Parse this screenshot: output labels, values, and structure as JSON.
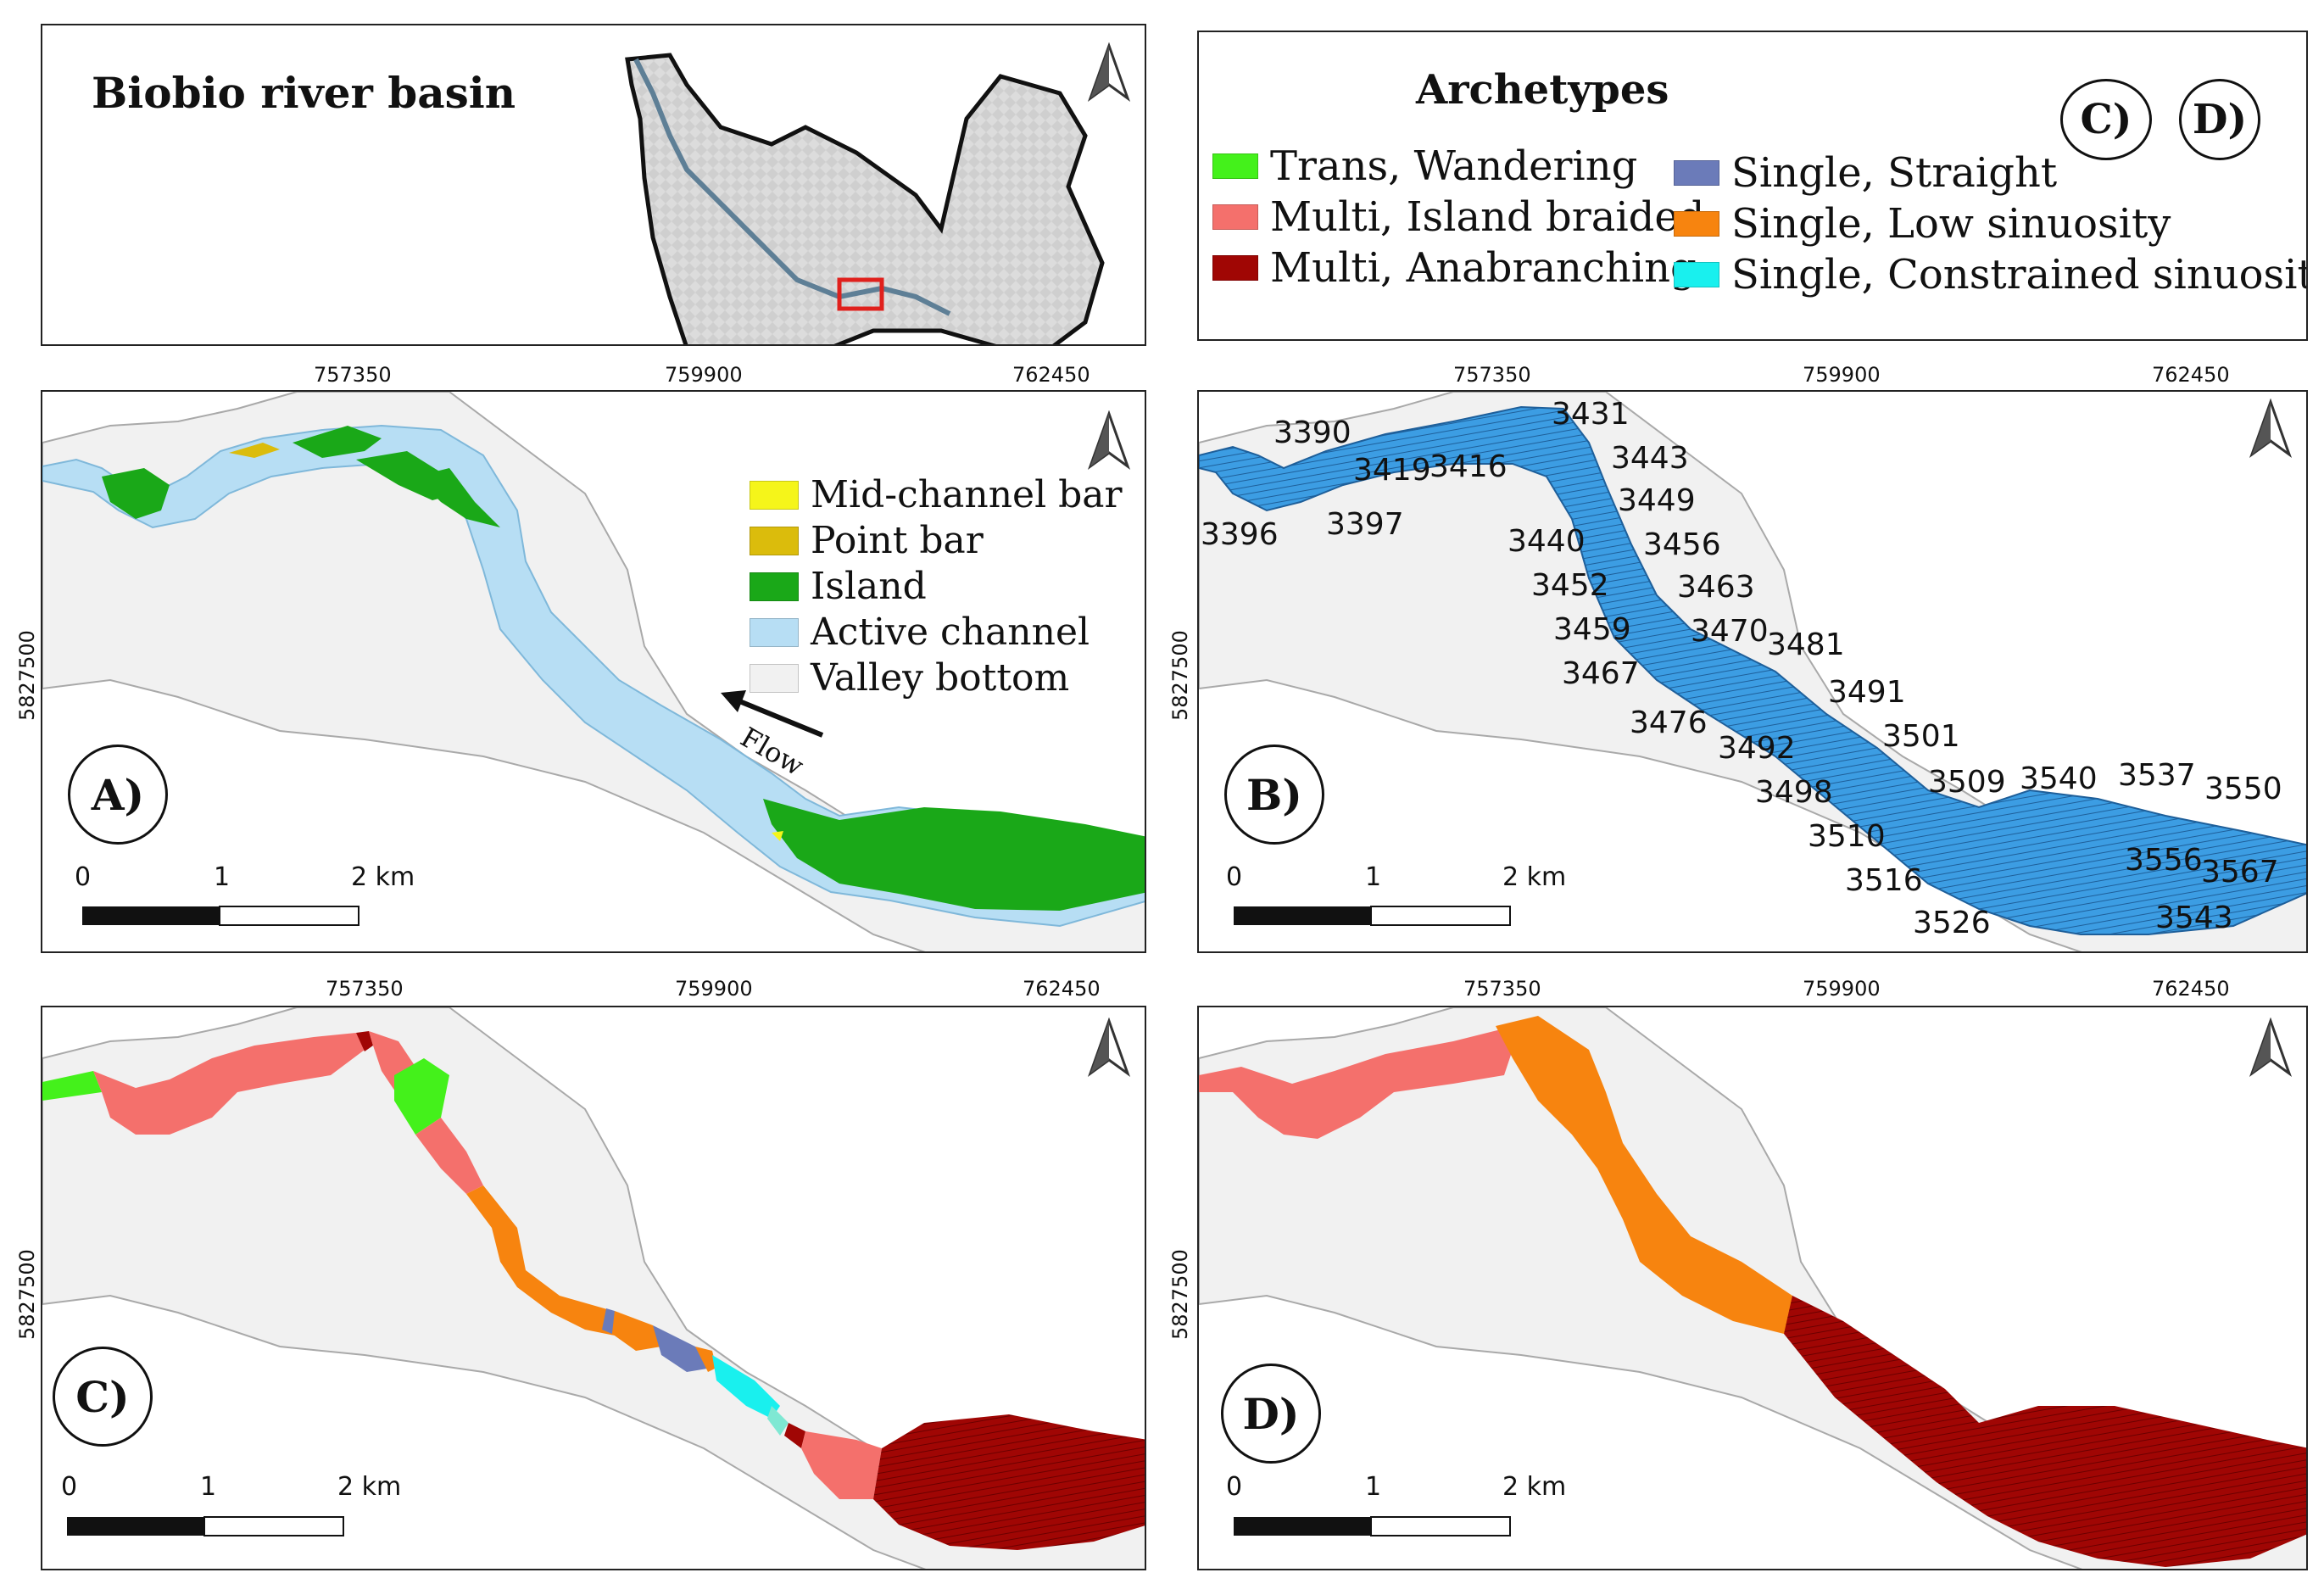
{
  "overview": {
    "title": "Biobio river basin"
  },
  "archetypes_legend": {
    "title": "Archetypes",
    "panel_refs": [
      "C)",
      "D)"
    ],
    "items": [
      {
        "label": "Trans, Wandering",
        "color": "#44f11b"
      },
      {
        "label": "Multi, Island braided",
        "color": "#f4706c"
      },
      {
        "label": "Multi, Anabranching",
        "color": "#a00604"
      },
      {
        "label": "Single, Straight",
        "color": "#6b7bb9"
      },
      {
        "label": "Single, Low sinuosity",
        "color": "#f7840f"
      },
      {
        "label": "Single, Constrained sinuosity",
        "color": "#19f0ee"
      }
    ]
  },
  "coords": {
    "x_ticks": [
      "757350",
      "759900",
      "762450"
    ],
    "y_tick": "5827500"
  },
  "scalebar": {
    "labels": [
      "0",
      "1",
      "2 km"
    ]
  },
  "panel_a": {
    "label": "A)",
    "flow_label": "Flow",
    "legend": [
      {
        "label": "Mid-channel bar",
        "color": "#f5f51a"
      },
      {
        "label": "Point bar",
        "color": "#dbbc0c"
      },
      {
        "label": "Island",
        "color": "#1aa818"
      },
      {
        "label": "Active channel",
        "color": "#b7def4"
      },
      {
        "label": "Valley bottom",
        "color": "#f1f1f1"
      }
    ]
  },
  "panel_b": {
    "label": "B)",
    "segment_ids": [
      "3390",
      "3419",
      "3416",
      "3396",
      "3397",
      "3431",
      "3443",
      "3449",
      "3440",
      "3456",
      "3452",
      "3463",
      "3459",
      "3470",
      "3481",
      "3467",
      "3491",
      "3476",
      "3501",
      "3492",
      "3509",
      "3540",
      "3537",
      "3550",
      "3498",
      "3510",
      "3556",
      "3567",
      "3516",
      "3543",
      "3526"
    ]
  },
  "panel_c": {
    "label": "C)"
  },
  "panel_d": {
    "label": "D)"
  },
  "colors": {
    "valley": "#f1f1f1",
    "valley_edge": "#a9a9a9",
    "channel": "#b7def4",
    "segments": "#3c9de3",
    "island": "#1aa818",
    "wandering": "#44f11b",
    "braided": "#f4706c",
    "anabranching": "#a00604",
    "straight": "#6b7bb9",
    "low_sinuosity": "#f7840f",
    "constrained": "#19f0ee",
    "basin_outline": "#111111",
    "study_box": "#e0201c"
  }
}
